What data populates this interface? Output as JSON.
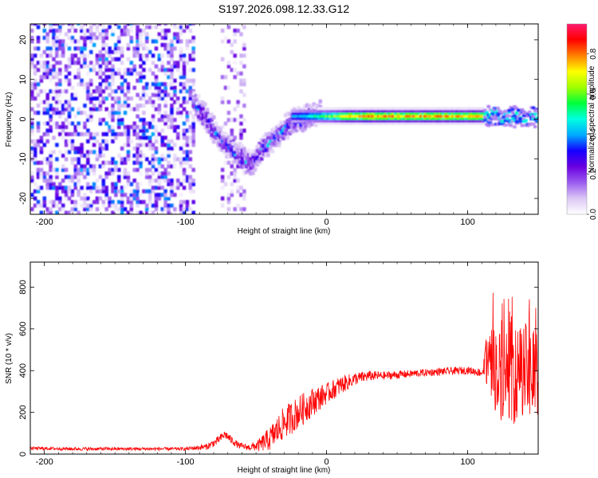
{
  "title": "S197.2026.098.12.33.G12",
  "chart_data": [
    {
      "type": "heatmap",
      "title": "",
      "xlabel": "Height of straight line (km)",
      "ylabel": "Frequency (Hz)",
      "xlim": [
        -210,
        150
      ],
      "ylim": [
        -24,
        24
      ],
      "xticks": [
        -200,
        -100,
        0,
        100
      ],
      "yticks": [
        -20,
        -10,
        0,
        10,
        20
      ],
      "colorbar": {
        "label": "Normalized spectral amplitude",
        "range": [
          0,
          0.95
        ],
        "ticks": [
          "0.0",
          "0.2",
          "0.4",
          "0.6",
          "0.8"
        ],
        "tick_values": [
          0.0,
          0.2,
          0.4,
          0.6,
          0.8
        ],
        "colors": [
          "#ffffff",
          "#dcc8f5",
          "#9b5cf0",
          "#6a00e0",
          "#1400ff",
          "#00aaff",
          "#00ffe0",
          "#00ff3c",
          "#a0ff00",
          "#ffff00",
          "#ff8000",
          "#ff0000",
          "#ff1a6e"
        ]
      },
      "features": [
        {
          "name": "noise",
          "x_range": [
            -210,
            -95
          ],
          "freq_range": [
            -24,
            24
          ],
          "amplitude": 0.25
        },
        {
          "name": "noise-band",
          "x_range": [
            -75,
            -58
          ],
          "freq_range": [
            -24,
            24
          ],
          "amplitude": 0.15
        },
        {
          "name": "descending-track",
          "x": [
            -95,
            -85,
            -75,
            -65,
            -55,
            -45,
            -35,
            -25,
            -15,
            -5
          ],
          "freq": [
            4,
            -1,
            -6,
            -9,
            -12,
            -7,
            -4,
            -1,
            0,
            1
          ],
          "amplitude": 0.3
        },
        {
          "name": "main-line",
          "x_range": [
            -25,
            150
          ],
          "freq": 0.5,
          "amplitude": 0.9
        }
      ]
    },
    {
      "type": "line",
      "title": "",
      "xlabel": "Height of straight line (km)",
      "ylabel": "SNR (10 * v/v)",
      "xlim": [
        -210,
        150
      ],
      "ylim": [
        0,
        920
      ],
      "xticks": [
        -200,
        -100,
        0,
        100
      ],
      "yticks": [
        0,
        200,
        400,
        600,
        800
      ],
      "series": [
        {
          "name": "SNR",
          "color": "#ff0000",
          "x": [
            -210,
            -180,
            -150,
            -120,
            -100,
            -85,
            -78,
            -72,
            -68,
            -62,
            -55,
            -48,
            -40,
            -30,
            -20,
            -10,
            0,
            10,
            20,
            30,
            40,
            50,
            60,
            70,
            80,
            90,
            100,
            110,
            113,
            118,
            123,
            128,
            133,
            138,
            143,
            147,
            150
          ],
          "y": [
            28,
            25,
            25,
            25,
            25,
            35,
            60,
            95,
            70,
            40,
            32,
            42,
            75,
            150,
            200,
            250,
            290,
            330,
            360,
            375,
            375,
            380,
            385,
            390,
            395,
            398,
            402,
            390,
            430,
            420,
            380,
            400,
            350,
            420,
            380,
            400,
            320
          ],
          "spread": [
            8,
            8,
            8,
            8,
            8,
            15,
            20,
            20,
            20,
            15,
            15,
            30,
            60,
            80,
            80,
            70,
            50,
            45,
            30,
            25,
            20,
            20,
            18,
            18,
            18,
            18,
            18,
            20,
            120,
            200,
            220,
            230,
            210,
            240,
            230,
            250,
            180
          ]
        }
      ]
    }
  ]
}
